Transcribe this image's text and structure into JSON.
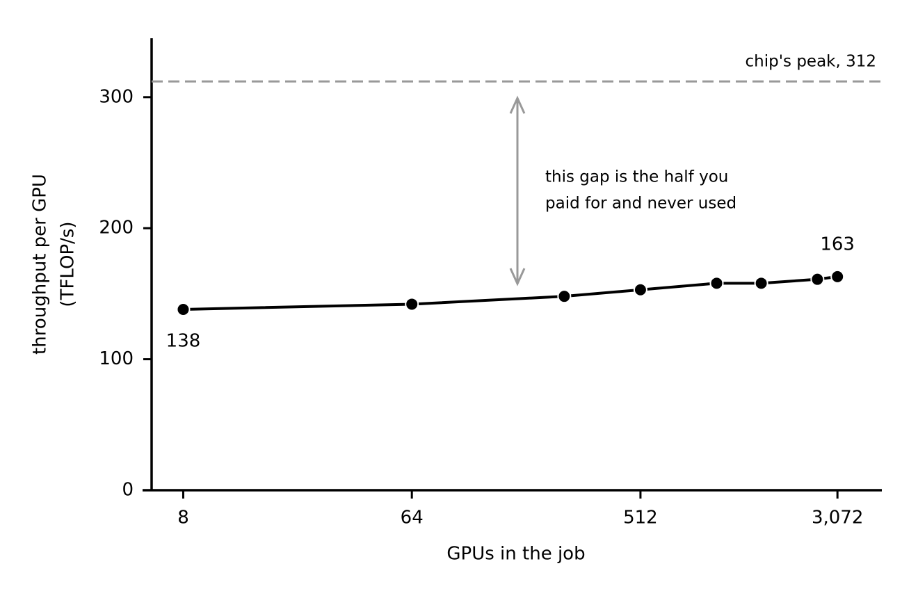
{
  "chart_data": {
    "type": "line",
    "xlabel": "GPUs in the job",
    "ylabel": [
      "throughput per GPU",
      "(TFLOP/s)"
    ],
    "x": [
      8,
      64,
      256,
      512,
      1024,
      1536,
      2560,
      3072
    ],
    "series": [
      {
        "color": "#000000",
        "values": [
          138,
          142,
          148,
          153,
          158,
          158,
          161,
          163
        ],
        "value_labels": [
          "138",
          null,
          null,
          null,
          null,
          null,
          null,
          "163"
        ]
      }
    ],
    "xscale": "log",
    "xlim": [
      6,
      4600
    ],
    "xticks": [
      8,
      64,
      512,
      {
        "value": 3072,
        "label": "3,072"
      }
    ],
    "ylim": [
      0,
      345
    ],
    "yticks": [
      0,
      100,
      200,
      300
    ],
    "reference_line": {
      "value": 312,
      "label": "chip's peak, 312",
      "color": "#999999"
    },
    "annotation": [
      "this gap is the half you",
      "paid for and never used"
    ]
  }
}
